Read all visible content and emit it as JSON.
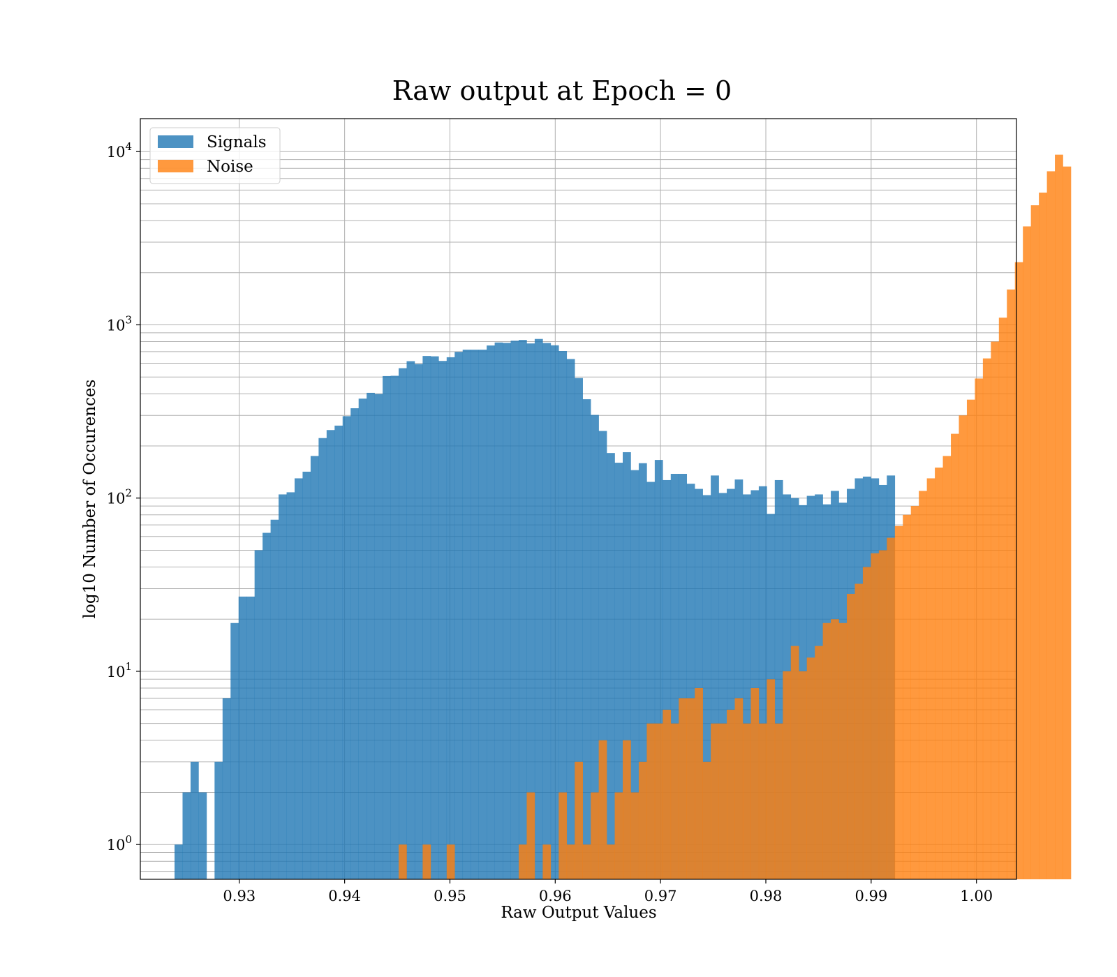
{
  "chart_data": {
    "type": "bar",
    "title": "Raw output at Epoch = 0",
    "xlabel": "Raw Output Values",
    "ylabel": "log10 Number of Occurences",
    "yscale": "log",
    "xlim": [
      0.9206,
      1.0038
    ],
    "ylim": [
      0.63,
      15500
    ],
    "grid": "on (major and minor)",
    "legend_position": "upper-left",
    "x_ticks": [
      "0.93",
      "0.94",
      "0.95",
      "0.96",
      "0.97",
      "0.98",
      "0.99",
      "1.00"
    ],
    "x_tick_values": [
      0.93,
      0.94,
      0.95,
      0.96,
      0.97,
      0.98,
      0.99,
      1.0
    ],
    "y_ticks": [
      {
        "base": "10",
        "exp": "0",
        "value": 1
      },
      {
        "base": "10",
        "exp": "1",
        "value": 10
      },
      {
        "base": "10",
        "exp": "2",
        "value": 100
      },
      {
        "base": "10",
        "exp": "3",
        "value": 1000
      },
      {
        "base": "10",
        "exp": "4",
        "value": 10000
      }
    ],
    "series": [
      {
        "name": "Signals",
        "color": "#1f77b4",
        "bin_start": 0.92385,
        "bin_width": 0.00076,
        "values": [
          1,
          2,
          3,
          2,
          0,
          3,
          7,
          19,
          27,
          27,
          50,
          63,
          75,
          105,
          108,
          130,
          142,
          175,
          222,
          247,
          262,
          297,
          330,
          375,
          405,
          399,
          506,
          508,
          562,
          617,
          594,
          661,
          658,
          619,
          650,
          698,
          719,
          719,
          719,
          760,
          791,
          787,
          810,
          818,
          781,
          829,
          786,
          762,
          706,
          635,
          493,
          372,
          302,
          244,
          182,
          160,
          184,
          145,
          159,
          124,
          166,
          127,
          138,
          138,
          121,
          113,
          104,
          135,
          107,
          113,
          128,
          105,
          111,
          117,
          81,
          127,
          105,
          100,
          91,
          103,
          105,
          92,
          110,
          94,
          113,
          130,
          133,
          130,
          119,
          135
        ]
      },
      {
        "name": "Noise",
        "color": "#ff7f0e",
        "bin_start": 0.92385,
        "bin_width": 0.00076,
        "values": [
          0,
          0,
          0,
          0,
          0,
          0,
          0,
          0,
          0,
          0,
          0,
          0,
          0,
          0,
          0,
          0,
          0,
          0,
          0,
          0,
          0,
          0,
          0,
          0,
          0,
          0,
          0,
          0,
          1,
          0,
          0,
          1,
          0,
          0,
          1,
          0,
          0,
          0,
          0,
          0,
          0,
          0,
          0,
          1,
          2,
          0,
          1,
          0,
          2,
          1,
          3,
          1,
          2,
          4,
          1,
          2,
          4,
          2,
          3,
          5,
          5,
          6,
          5,
          7,
          7,
          8,
          3,
          5,
          5,
          6,
          7,
          5,
          8,
          5,
          9,
          5,
          10,
          14,
          10,
          12,
          14,
          19,
          20,
          19,
          28,
          32,
          40,
          48,
          50,
          59,
          69,
          80,
          90,
          110,
          130,
          150,
          175,
          235,
          300,
          370,
          490,
          640,
          800,
          1100,
          1600,
          2300,
          3700,
          4900,
          5800,
          7700,
          9600,
          8200
        ]
      }
    ]
  }
}
